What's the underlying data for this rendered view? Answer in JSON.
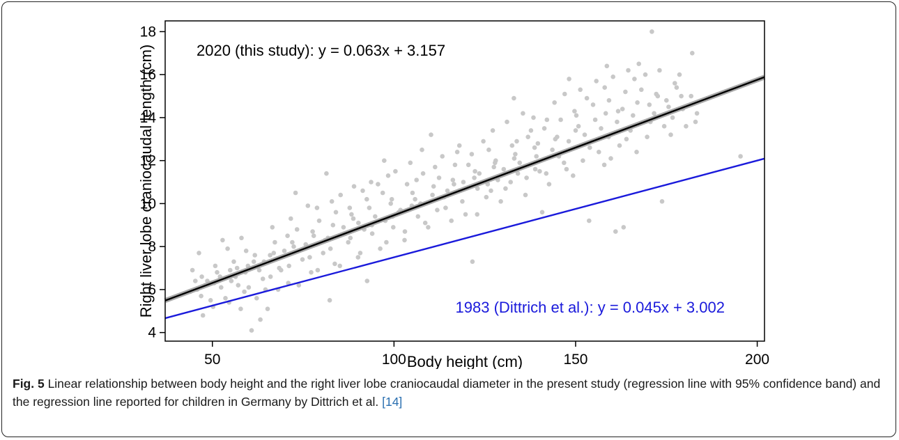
{
  "chart_data": {
    "type": "scatter",
    "xlabel": "Body height (cm)",
    "ylabel": "Right liver lobe craniocaudal length (cm)",
    "xlim": [
      37,
      202
    ],
    "ylim": [
      3.6,
      18.5
    ],
    "xticks": [
      50,
      100,
      150,
      200
    ],
    "yticks": [
      4,
      6,
      8,
      10,
      12,
      14,
      16,
      18
    ],
    "grid": false,
    "point_color": "#c8c8c8",
    "series": [
      {
        "kind": "regression-line",
        "slope": 0.063,
        "intercept": 3.157,
        "color": "#000000",
        "confidence_band": true,
        "band_color": "#a9a9a9"
      },
      {
        "kind": "regression-line",
        "slope": 0.045,
        "intercept": 3.002,
        "color": "#1a1adb"
      }
    ],
    "annotations": [
      {
        "text": "2020 (this study): y = 0.063x + 3.157",
        "color": "#000000"
      },
      {
        "text": "1983 (Dittrich et al.): y = 0.045x + 3.002",
        "color": "#1a1adb"
      }
    ],
    "points": [
      [
        60.8,
        4.1
      ],
      [
        63.2,
        4.6
      ],
      [
        47.4,
        4.8
      ],
      [
        57.8,
        5.1
      ],
      [
        50.2,
        5.2
      ],
      [
        65.2,
        5.1
      ],
      [
        195.4,
        12.2
      ],
      [
        171.0,
        18.0
      ],
      [
        182.1,
        17.0
      ],
      [
        81.4,
        11.4
      ],
      [
        97.3,
        12.0
      ],
      [
        121.6,
        7.3
      ],
      [
        161.0,
        8.7
      ],
      [
        163.2,
        8.9
      ],
      [
        153.7,
        9.2
      ],
      [
        82.3,
        5.5
      ],
      [
        140.8,
        9.6
      ],
      [
        158.6,
        16.4
      ],
      [
        72.9,
        10.5
      ],
      [
        110.2,
        13.2
      ],
      [
        133.0,
        14.9
      ],
      [
        148.2,
        15.8
      ],
      [
        173.8,
        10.1
      ],
      [
        92.6,
        6.4
      ],
      [
        46.3,
        7.7
      ],
      [
        52.8,
        8.3
      ],
      [
        58.0,
        8.4
      ],
      [
        44.5,
        6.9
      ],
      [
        54.2,
        7.9
      ],
      [
        48.0,
        6.2
      ],
      [
        56.4,
        6.6
      ],
      [
        59.8,
        7.1
      ],
      [
        62.9,
        6.9
      ],
      [
        65.9,
        7.6
      ],
      [
        68.4,
        7.0
      ],
      [
        70.7,
        8.5
      ],
      [
        73.3,
        8.8
      ],
      [
        75.1,
        7.9
      ],
      [
        77.6,
        8.7
      ],
      [
        79.4,
        9.2
      ],
      [
        81.8,
        8.4
      ],
      [
        84.0,
        9.6
      ],
      [
        86.1,
        8.9
      ],
      [
        88.3,
        9.5
      ],
      [
        90.2,
        9.1
      ],
      [
        92.5,
        10.2
      ],
      [
        94.8,
        9.4
      ],
      [
        96.9,
        10.5
      ],
      [
        99.1,
        10.0
      ],
      [
        101.3,
        9.6
      ],
      [
        103.6,
        10.9
      ],
      [
        105.8,
        10.2
      ],
      [
        108.0,
        11.4
      ],
      [
        110.1,
        10.1
      ],
      [
        112.4,
        11.2
      ],
      [
        114.7,
        10.6
      ],
      [
        116.8,
        11.8
      ],
      [
        119.1,
        11.0
      ],
      [
        121.4,
        12.3
      ],
      [
        123.5,
        11.4
      ],
      [
        125.8,
        10.9
      ],
      [
        128.0,
        12.0
      ],
      [
        130.2,
        11.6
      ],
      [
        132.5,
        12.7
      ],
      [
        134.6,
        11.9
      ],
      [
        136.9,
        13.1
      ],
      [
        139.2,
        12.2
      ],
      [
        141.4,
        13.5
      ],
      [
        143.6,
        12.5
      ],
      [
        145.9,
        13.9
      ],
      [
        148.1,
        12.9
      ],
      [
        150.2,
        14.1
      ],
      [
        152.5,
        13.2
      ],
      [
        154.8,
        14.6
      ],
      [
        157.0,
        13.5
      ],
      [
        159.2,
        14.8
      ],
      [
        161.4,
        13.8
      ],
      [
        163.7,
        15.2
      ],
      [
        165.8,
        14.1
      ],
      [
        168.1,
        15.3
      ],
      [
        170.3,
        14.6
      ],
      [
        172.6,
        15.0
      ],
      [
        175.0,
        14.8
      ],
      [
        177.3,
        15.6
      ],
      [
        179.5,
        14.4
      ],
      [
        181.8,
        15.0
      ],
      [
        183.0,
        13.8
      ],
      [
        183.4,
        14.2
      ],
      [
        178.6,
        16.0
      ],
      [
        176.2,
        13.2
      ],
      [
        166.8,
        12.4
      ],
      [
        157.9,
        11.8
      ],
      [
        149.3,
        11.3
      ],
      [
        142.7,
        10.9
      ],
      [
        136.2,
        10.4
      ],
      [
        129.4,
        10.1
      ],
      [
        122.9,
        9.5
      ],
      [
        115.8,
        9.2
      ],
      [
        109.4,
        8.9
      ],
      [
        102.9,
        8.3
      ],
      [
        96.2,
        7.9
      ],
      [
        90.1,
        7.5
      ],
      [
        83.7,
        7.2
      ],
      [
        77.2,
        6.8
      ],
      [
        70.9,
        6.3
      ],
      [
        64.6,
        6.0
      ],
      [
        58.8,
        5.9
      ],
      [
        53.6,
        5.6
      ],
      [
        49.5,
        5.5
      ],
      [
        51.3,
        6.8
      ],
      [
        55.9,
        7.3
      ],
      [
        61.7,
        7.6
      ],
      [
        67.2,
        8.2
      ],
      [
        72.4,
        8.0
      ],
      [
        78.8,
        9.8
      ],
      [
        85.3,
        10.4
      ],
      [
        89.0,
        10.8
      ],
      [
        93.7,
        11.0
      ],
      [
        98.4,
        11.3
      ],
      [
        104.5,
        11.9
      ],
      [
        107.7,
        12.5
      ],
      [
        113.3,
        12.2
      ],
      [
        118.0,
        12.7
      ],
      [
        124.6,
        12.9
      ],
      [
        127.2,
        13.4
      ],
      [
        131.1,
        13.8
      ],
      [
        135.5,
        14.2
      ],
      [
        138.4,
        14.0
      ],
      [
        144.2,
        14.7
      ],
      [
        147.0,
        15.1
      ],
      [
        151.3,
        15.3
      ],
      [
        155.7,
        15.7
      ],
      [
        160.3,
        15.9
      ],
      [
        164.5,
        16.2
      ],
      [
        167.4,
        16.5
      ],
      [
        169.2,
        16.0
      ],
      [
        173.1,
        16.2
      ],
      [
        162.1,
        12.7
      ],
      [
        156.4,
        12.4
      ],
      [
        146.8,
        11.9
      ],
      [
        138.9,
        11.6
      ],
      [
        132.1,
        11.0
      ],
      [
        126.7,
        10.6
      ],
      [
        118.8,
        10.1
      ],
      [
        111.9,
        9.7
      ],
      [
        106.6,
        9.4
      ],
      [
        99.8,
        8.9
      ],
      [
        94.0,
        8.6
      ],
      [
        87.4,
        8.2
      ],
      [
        80.5,
        7.7
      ],
      [
        74.8,
        7.4
      ],
      [
        68.9,
        6.9
      ],
      [
        63.9,
        6.5
      ],
      [
        57.1,
        6.2
      ],
      [
        52.4,
        6.1
      ],
      [
        45.8,
        6.0
      ],
      [
        43.9,
        5.9
      ],
      [
        47.1,
        6.6
      ],
      [
        50.8,
        7.1
      ],
      [
        54.9,
        6.9
      ],
      [
        59.3,
        7.8
      ],
      [
        66.5,
        8.9
      ],
      [
        71.6,
        9.3
      ],
      [
        76.3,
        9.9
      ],
      [
        82.9,
        10.1
      ],
      [
        87.8,
        9.8
      ],
      [
        91.4,
        10.6
      ],
      [
        95.6,
        10.9
      ],
      [
        100.4,
        11.5
      ],
      [
        106.2,
        11.1
      ],
      [
        111.3,
        11.7
      ],
      [
        117.4,
        12.4
      ],
      [
        120.5,
        11.8
      ],
      [
        126.1,
        12.5
      ],
      [
        133.8,
        12.9
      ],
      [
        137.7,
        13.4
      ],
      [
        142.1,
        13.9
      ],
      [
        149.7,
        14.3
      ],
      [
        153.1,
        14.9
      ],
      [
        158.0,
        15.4
      ],
      [
        162.9,
        14.4
      ],
      [
        166.2,
        15.8
      ],
      [
        171.6,
        14.2
      ],
      [
        174.4,
        13.6
      ],
      [
        180.4,
        13.6
      ],
      [
        176.7,
        14.0
      ],
      [
        169.7,
        13.1
      ],
      [
        164.0,
        13.0
      ],
      [
        159.7,
        12.1
      ],
      [
        152.0,
        12.0
      ],
      [
        145.4,
        12.2
      ],
      [
        140.1,
        11.5
      ],
      [
        134.1,
        11.4
      ],
      [
        128.6,
        11.1
      ],
      [
        123.0,
        10.7
      ],
      [
        117.9,
        10.6
      ],
      [
        113.8,
        10.3
      ],
      [
        107.3,
        10.0
      ],
      [
        101.8,
        9.7
      ],
      [
        97.6,
        9.2
      ],
      [
        91.8,
        8.8
      ],
      [
        86.6,
        8.6
      ],
      [
        81.0,
        8.3
      ],
      [
        75.7,
        8.1
      ],
      [
        69.8,
        7.8
      ],
      [
        64.2,
        7.3
      ],
      [
        59.1,
        6.8
      ],
      [
        55.2,
        6.4
      ],
      [
        50.5,
        6.3
      ],
      [
        46.9,
        5.7
      ],
      [
        62.2,
        5.6
      ],
      [
        68.1,
        6.0
      ],
      [
        73.8,
        6.2
      ],
      [
        79.0,
        6.9
      ],
      [
        85.1,
        7.1
      ],
      [
        90.7,
        7.7
      ],
      [
        97.9,
        8.2
      ],
      [
        103.0,
        8.7
      ],
      [
        108.6,
        9.1
      ],
      [
        114.2,
        9.8
      ],
      [
        119.7,
        9.5
      ],
      [
        125.4,
        10.3
      ],
      [
        130.7,
        10.7
      ],
      [
        136.5,
        11.2
      ],
      [
        141.9,
        11.4
      ],
      [
        147.5,
        11.6
      ],
      [
        153.9,
        12.6
      ],
      [
        159.1,
        13.1
      ],
      [
        165.1,
        13.4
      ],
      [
        170.6,
        13.8
      ],
      [
        175.6,
        14.5
      ],
      [
        179.1,
        15.0
      ],
      [
        158.3,
        14.2
      ],
      [
        150.8,
        13.6
      ],
      [
        144.9,
        13.1
      ],
      [
        139.6,
        12.8
      ],
      [
        133.4,
        12.3
      ],
      [
        127.8,
        11.9
      ],
      [
        122.3,
        11.5
      ],
      [
        116.2,
        11.1
      ],
      [
        110.9,
        10.8
      ],
      [
        105.1,
        10.5
      ],
      [
        99.4,
        10.2
      ],
      [
        93.2,
        9.8
      ],
      [
        88.8,
        9.3
      ],
      [
        83.2,
        9.0
      ],
      [
        77.9,
        8.5
      ],
      [
        72.0,
        8.2
      ],
      [
        66.9,
        7.7
      ],
      [
        61.4,
        7.3
      ],
      [
        56.8,
        7.0
      ],
      [
        52.1,
        6.6
      ],
      [
        48.6,
        6.4
      ],
      [
        45.3,
        6.4
      ],
      [
        54.6,
        5.4
      ],
      [
        60.0,
        6.1
      ],
      [
        66.0,
        6.6
      ],
      [
        71.1,
        7.1
      ],
      [
        76.8,
        7.5
      ],
      [
        82.5,
        7.9
      ],
      [
        88.0,
        8.4
      ],
      [
        93.9,
        9.0
      ],
      [
        99.6,
        9.4
      ],
      [
        104.9,
        9.9
      ],
      [
        110.6,
        10.4
      ],
      [
        116.5,
        10.9
      ],
      [
        122.1,
        11.2
      ],
      [
        127.5,
        11.7
      ],
      [
        133.1,
        12.1
      ],
      [
        138.7,
        12.6
      ],
      [
        144.4,
        13.0
      ],
      [
        150.0,
        13.4
      ],
      [
        155.4,
        13.9
      ],
      [
        161.7,
        14.3
      ],
      [
        167.0,
        14.7
      ],
      [
        172.2,
        15.1
      ],
      [
        177.8,
        15.4
      ]
    ]
  },
  "caption": {
    "label": "Fig. 5",
    "text": " Linear relationship between body height and the right liver lobe craniocaudal diameter in the present study (regression line with 95% confidence band) and the regression line reported for children in Germany by Dittrich et al. ",
    "reference": "[14]"
  }
}
